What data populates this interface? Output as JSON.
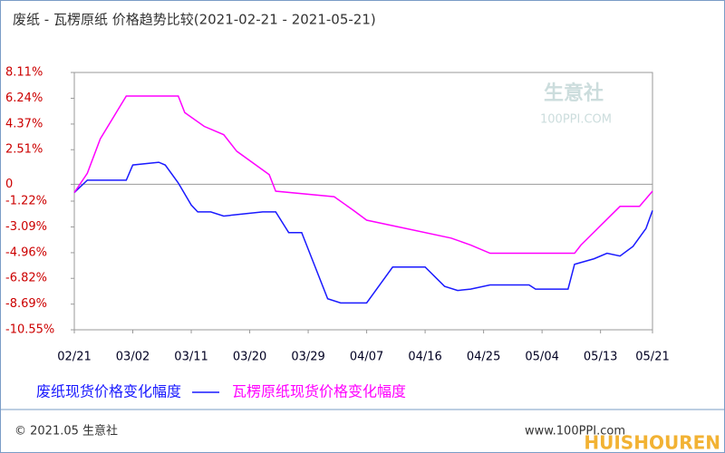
{
  "chart_data": {
    "type": "line",
    "title": "废纸 - 瓦楞原纸 价格趋势比较(2021-02-21 - 2021-05-21)",
    "xlim": [
      "02/21",
      "05/21"
    ],
    "xticks": [
      "02/21",
      "03/02",
      "03/11",
      "03/20",
      "03/29",
      "04/07",
      "04/16",
      "04/25",
      "05/04",
      "05/13",
      "05/21"
    ],
    "ylim": [
      -10.55,
      8.11
    ],
    "yticks": [
      {
        "value": 8.11,
        "label": "8.11%"
      },
      {
        "value": 6.24,
        "label": "6.24%"
      },
      {
        "value": 4.37,
        "label": "4.37%"
      },
      {
        "value": 2.51,
        "label": "2.51%"
      },
      0,
      {
        "value": -1.22,
        "label": "-1.22%"
      },
      {
        "value": -3.09,
        "label": "-3.09%"
      },
      {
        "value": -4.96,
        "label": "-4.96%"
      },
      {
        "value": -6.82,
        "label": "-6.82%"
      },
      {
        "value": -8.69,
        "label": "-8.69%"
      },
      {
        "value": -10.55,
        "label": "-10.55%"
      }
    ],
    "series": [
      {
        "name": "废纸现货价格变化幅度",
        "color": "#1a1aff",
        "x": [
          "02/21",
          "02/23",
          "03/01",
          "03/02",
          "03/06",
          "03/07",
          "03/09",
          "03/11",
          "03/12",
          "03/14",
          "03/16",
          "03/18",
          "03/22",
          "03/24",
          "03/26",
          "03/28",
          "03/30",
          "04/01",
          "04/03",
          "04/07",
          "04/09",
          "04/11",
          "04/16",
          "04/19",
          "04/21",
          "04/23",
          "04/26",
          "05/02",
          "05/03",
          "05/08",
          "05/09",
          "05/12",
          "05/14",
          "05/16",
          "05/18",
          "05/20",
          "05/21"
        ],
        "values": [
          -0.6,
          0.3,
          0.3,
          1.4,
          1.6,
          1.4,
          0.1,
          -1.5,
          -2.0,
          -2.0,
          -2.3,
          -2.2,
          -2.0,
          -2.0,
          -3.5,
          -3.5,
          -5.9,
          -8.3,
          -8.6,
          -8.6,
          -7.3,
          -6.0,
          -6.0,
          -7.4,
          -7.7,
          -7.6,
          -7.3,
          -7.3,
          -7.6,
          -7.6,
          -5.8,
          -5.4,
          -5.0,
          -5.2,
          -4.5,
          -3.2,
          -1.9
        ]
      },
      {
        "name": "瓦楞原纸现货价格变化幅度",
        "color": "#ff00ff",
        "x": [
          "02/21",
          "02/23",
          "02/25",
          "03/01",
          "03/09",
          "03/10",
          "03/13",
          "03/16",
          "03/18",
          "03/23",
          "03/24",
          "04/02",
          "04/05",
          "04/07",
          "04/20",
          "04/23",
          "04/26",
          "05/09",
          "05/10",
          "05/13",
          "05/16",
          "05/19",
          "05/21"
        ],
        "values": [
          -0.6,
          0.8,
          3.3,
          6.4,
          6.4,
          5.2,
          4.2,
          3.6,
          2.4,
          0.7,
          -0.5,
          -0.9,
          -1.9,
          -2.6,
          -3.9,
          -4.4,
          -5.0,
          -5.0,
          -4.4,
          -3.0,
          -1.6,
          -1.6,
          -0.5
        ]
      }
    ],
    "watermark": "生意社",
    "watermark_site": "100PPI.COM",
    "footer": "© 2021.05 生意社",
    "footer_site": "www.100PPI.com",
    "overlay": "HUISHOUREN"
  }
}
